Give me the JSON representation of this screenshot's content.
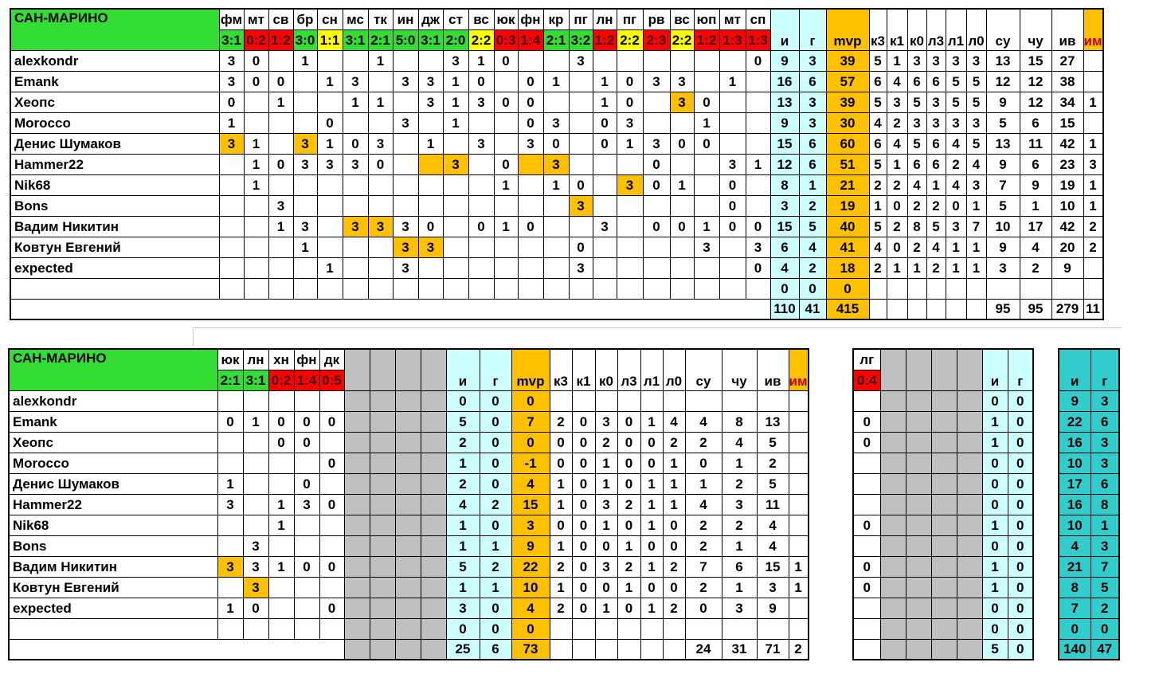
{
  "team_name": "САН-МАРИНО",
  "players": [
    "alexkondr",
    "Emank",
    "Хеопс",
    "Morocco",
    "Денис Шумаков",
    "Hammer22",
    "Nik68",
    "Bons",
    "Вадим Никитин",
    "Ковтун Евгений",
    "expected"
  ],
  "colors": {
    "win": "#33dd33",
    "draw": "#ffff00",
    "loss": "#ff0000",
    "stat_bg": "#ccffff",
    "mvp_bg": "#ffc000",
    "highlight": "#ffc000",
    "grey": "#bfbfbf",
    "total_bg": "#33cccc"
  },
  "table1": {
    "opponents": [
      {
        "code": "фм",
        "score": "3:1",
        "result": "win"
      },
      {
        "code": "мт",
        "score": "0:2",
        "result": "loss"
      },
      {
        "code": "св",
        "score": "1:2",
        "result": "loss"
      },
      {
        "code": "бр",
        "score": "3:0",
        "result": "win"
      },
      {
        "code": "сн",
        "score": "1:1",
        "result": "draw"
      },
      {
        "code": "мс",
        "score": "3:1",
        "result": "win"
      },
      {
        "code": "тк",
        "score": "2:1",
        "result": "win"
      },
      {
        "code": "ин",
        "score": "5:0",
        "result": "win"
      },
      {
        "code": "дж",
        "score": "3:1",
        "result": "win"
      },
      {
        "code": "ст",
        "score": "2:0",
        "result": "win"
      },
      {
        "code": "вс",
        "score": "2:2",
        "result": "draw"
      },
      {
        "code": "юк",
        "score": "0:3",
        "result": "loss"
      },
      {
        "code": "фн",
        "score": "1:4",
        "result": "loss"
      },
      {
        "code": "кр",
        "score": "2:1",
        "result": "win"
      },
      {
        "code": "пг",
        "score": "3:2",
        "result": "win"
      },
      {
        "code": "лн",
        "score": "1:2",
        "result": "loss"
      },
      {
        "code": "пг",
        "score": "2:2",
        "result": "draw"
      },
      {
        "code": "рв",
        "score": "2:3",
        "result": "loss"
      },
      {
        "code": "вс",
        "score": "2:2",
        "result": "draw"
      },
      {
        "code": "юп",
        "score": "1:2",
        "result": "loss"
      },
      {
        "code": "мт",
        "score": "1:3",
        "result": "loss"
      },
      {
        "code": "сп",
        "score": "1:3",
        "result": "loss"
      }
    ],
    "stat_headers": [
      "и",
      "г",
      "mvp",
      "к3",
      "к1",
      "к0",
      "л3",
      "л1",
      "л0",
      "су",
      "чу",
      "ив",
      "им"
    ],
    "match_values": [
      [
        "3",
        "0",
        "",
        "1",
        "",
        "",
        "1",
        "",
        "",
        "3",
        "1",
        "0",
        "",
        "",
        "3",
        "",
        "",
        "",
        "",
        "",
        "",
        "0"
      ],
      [
        "3",
        "0",
        "0",
        "",
        "1",
        "3",
        "",
        "3",
        "3",
        "1",
        "0",
        "",
        "0",
        "1",
        "",
        "1",
        "0",
        "3",
        "3",
        "",
        "1",
        ""
      ],
      [
        "0",
        "",
        "1",
        "",
        "",
        "1",
        "1",
        "",
        "3",
        "1",
        "3",
        "0",
        "0",
        "",
        "",
        "1",
        "0",
        "",
        "3",
        "0",
        "",
        ""
      ],
      [
        "1",
        "",
        "",
        "",
        "0",
        "",
        "",
        "3",
        "",
        "1",
        "",
        "",
        "0",
        "3",
        "",
        "0",
        "3",
        "",
        "",
        "1",
        "",
        ""
      ],
      [
        "3",
        "1",
        "",
        "3",
        "1",
        "0",
        "3",
        "",
        "1",
        "",
        "3",
        "",
        "3",
        "0",
        "",
        "0",
        "1",
        "3",
        "0",
        "0",
        "",
        ""
      ],
      [
        "",
        "1",
        "0",
        "3",
        "3",
        "3",
        "0",
        "",
        "",
        "3",
        "",
        "0",
        "",
        "3",
        "",
        "",
        "",
        "0",
        "",
        "",
        "3",
        "1"
      ],
      [
        "",
        "1",
        "",
        "",
        "",
        "",
        "",
        "",
        "",
        "",
        "",
        "1",
        "",
        "1",
        "0",
        "",
        "3",
        "0",
        "1",
        "",
        "0",
        ""
      ],
      [
        "",
        "",
        "3",
        "",
        "",
        "",
        "",
        "",
        "",
        "",
        "",
        "",
        "",
        "",
        "3",
        "",
        "",
        "",
        "",
        "",
        "0",
        ""
      ],
      [
        "",
        "",
        "1",
        "3",
        "",
        "3",
        "3",
        "3",
        "0",
        "",
        "0",
        "1",
        "0",
        "",
        "",
        "3",
        "",
        "0",
        "0",
        "1",
        "0",
        "0"
      ],
      [
        "",
        "",
        "",
        "1",
        "",
        "",
        "",
        "3",
        "3",
        "",
        "",
        "",
        "",
        "",
        "0",
        "",
        "",
        "",
        "",
        "3",
        "",
        "3"
      ],
      [
        "",
        "",
        "",
        "",
        "1",
        "",
        "",
        "3",
        "",
        "",
        "",
        "",
        "",
        "",
        "3",
        "",
        "",
        "",
        "",
        "",
        "",
        "0"
      ],
      [
        "",
        "",
        "",
        "",
        "",
        "",
        "",
        "",
        "",
        "",
        "",
        "",
        "",
        "",
        "",
        "",
        "",
        "",
        "",
        "",
        "",
        ""
      ]
    ],
    "highlights": [
      [
        4,
        0
      ],
      [
        4,
        3
      ],
      [
        5,
        8
      ],
      [
        5,
        12
      ],
      [
        5,
        9
      ],
      [
        5,
        13
      ],
      [
        6,
        16
      ],
      [
        7,
        14
      ],
      [
        8,
        5
      ],
      [
        8,
        6
      ],
      [
        9,
        7
      ],
      [
        9,
        8
      ],
      [
        2,
        18
      ]
    ],
    "stat_values": [
      [
        "9",
        "3",
        "39",
        "5",
        "1",
        "3",
        "3",
        "3",
        "3",
        "13",
        "15",
        "27",
        ""
      ],
      [
        "16",
        "6",
        "57",
        "6",
        "4",
        "6",
        "6",
        "5",
        "5",
        "12",
        "12",
        "38",
        ""
      ],
      [
        "13",
        "3",
        "39",
        "5",
        "3",
        "5",
        "3",
        "5",
        "5",
        "9",
        "12",
        "34",
        "1"
      ],
      [
        "9",
        "3",
        "30",
        "4",
        "2",
        "3",
        "3",
        "3",
        "3",
        "5",
        "6",
        "15",
        ""
      ],
      [
        "15",
        "6",
        "60",
        "6",
        "4",
        "5",
        "6",
        "4",
        "5",
        "13",
        "11",
        "42",
        "1"
      ],
      [
        "12",
        "6",
        "51",
        "5",
        "1",
        "6",
        "6",
        "2",
        "4",
        "9",
        "6",
        "23",
        "3"
      ],
      [
        "8",
        "1",
        "21",
        "2",
        "2",
        "4",
        "1",
        "4",
        "3",
        "7",
        "9",
        "19",
        "1"
      ],
      [
        "3",
        "2",
        "19",
        "1",
        "0",
        "2",
        "2",
        "0",
        "1",
        "5",
        "1",
        "10",
        "1"
      ],
      [
        "15",
        "5",
        "40",
        "5",
        "2",
        "8",
        "5",
        "3",
        "7",
        "10",
        "17",
        "42",
        "2"
      ],
      [
        "6",
        "4",
        "41",
        "4",
        "0",
        "2",
        "4",
        "1",
        "1",
        "9",
        "4",
        "20",
        "2"
      ],
      [
        "4",
        "2",
        "18",
        "2",
        "1",
        "1",
        "2",
        "1",
        "1",
        "3",
        "2",
        "9",
        ""
      ],
      [
        "0",
        "0",
        "0",
        "",
        "",
        "",
        "",
        "",
        "",
        "",
        "",
        "",
        ""
      ]
    ],
    "totals": [
      "110",
      "41",
      "415",
      "",
      "",
      "",
      "",
      "",
      "",
      "95",
      "95",
      "279",
      "11"
    ]
  },
  "table2": {
    "opponents": [
      {
        "code": "юк",
        "score": "2:1",
        "result": "win"
      },
      {
        "code": "лн",
        "score": "3:1",
        "result": "win"
      },
      {
        "code": "хн",
        "score": "0:2",
        "result": "loss"
      },
      {
        "code": "фн",
        "score": "1:4",
        "result": "loss"
      },
      {
        "code": "дк",
        "score": "0:5",
        "result": "loss"
      }
    ],
    "stat_headers": [
      "и",
      "г",
      "mvp",
      "к3",
      "к1",
      "к0",
      "л3",
      "л1",
      "л0",
      "су",
      "чу",
      "ив",
      "им"
    ],
    "match_values": [
      [
        "",
        "",
        "",
        "",
        ""
      ],
      [
        "0",
        "1",
        "0",
        "0",
        "0"
      ],
      [
        "",
        "",
        "0",
        "0",
        ""
      ],
      [
        "",
        "",
        "",
        "",
        "0"
      ],
      [
        "1",
        "",
        "",
        "0",
        ""
      ],
      [
        "3",
        "",
        "1",
        "3",
        "0"
      ],
      [
        "",
        "",
        "1",
        "",
        ""
      ],
      [
        "",
        "3",
        "",
        "",
        ""
      ],
      [
        "3",
        "3",
        "1",
        "0",
        "0"
      ],
      [
        "",
        "3",
        "",
        "",
        ""
      ],
      [
        "1",
        "0",
        "",
        "",
        "0"
      ],
      [
        "",
        "",
        "",
        "",
        ""
      ]
    ],
    "highlights": [
      [
        8,
        0
      ],
      [
        9,
        1
      ]
    ],
    "stat_values": [
      [
        "0",
        "0",
        "0",
        "",
        "",
        "",
        "",
        "",
        "",
        "",
        "",
        "",
        ""
      ],
      [
        "5",
        "0",
        "7",
        "2",
        "0",
        "3",
        "0",
        "1",
        "4",
        "4",
        "8",
        "13",
        ""
      ],
      [
        "2",
        "0",
        "0",
        "0",
        "0",
        "2",
        "0",
        "0",
        "2",
        "2",
        "4",
        "5",
        ""
      ],
      [
        "1",
        "0",
        "-1",
        "0",
        "0",
        "1",
        "0",
        "0",
        "1",
        "0",
        "1",
        "2",
        ""
      ],
      [
        "2",
        "0",
        "4",
        "1",
        "0",
        "1",
        "0",
        "1",
        "1",
        "1",
        "2",
        "5",
        ""
      ],
      [
        "4",
        "2",
        "15",
        "1",
        "0",
        "3",
        "2",
        "1",
        "1",
        "4",
        "3",
        "11",
        ""
      ],
      [
        "1",
        "0",
        "3",
        "0",
        "0",
        "1",
        "0",
        "1",
        "0",
        "2",
        "2",
        "4",
        ""
      ],
      [
        "1",
        "1",
        "9",
        "1",
        "0",
        "0",
        "1",
        "0",
        "0",
        "2",
        "1",
        "4",
        ""
      ],
      [
        "5",
        "2",
        "22",
        "2",
        "0",
        "3",
        "2",
        "1",
        "2",
        "7",
        "6",
        "15",
        "1"
      ],
      [
        "1",
        "1",
        "10",
        "1",
        "0",
        "0",
        "1",
        "0",
        "0",
        "2",
        "1",
        "3",
        "1"
      ],
      [
        "3",
        "0",
        "4",
        "2",
        "0",
        "1",
        "0",
        "1",
        "2",
        "0",
        "3",
        "9",
        ""
      ],
      [
        "0",
        "0",
        "0",
        "",
        "",
        "",
        "",
        "",
        "",
        "",
        "",
        "",
        ""
      ]
    ],
    "totals": [
      "25",
      "6",
      "73",
      "",
      "",
      "",
      "",
      "",
      "",
      "24",
      "31",
      "71",
      "2"
    ]
  },
  "table3": {
    "opponent": {
      "code": "лг",
      "score": "0:4",
      "result": "loss"
    },
    "stat_headers": [
      "и",
      "г"
    ],
    "match_values": [
      "",
      "0",
      "0",
      "",
      "",
      "",
      "0",
      "",
      "0",
      "0",
      "",
      ""
    ],
    "stat_values": [
      [
        "0",
        "0"
      ],
      [
        "1",
        "0"
      ],
      [
        "1",
        "0"
      ],
      [
        "0",
        "0"
      ],
      [
        "0",
        "0"
      ],
      [
        "0",
        "0"
      ],
      [
        "1",
        "0"
      ],
      [
        "0",
        "0"
      ],
      [
        "1",
        "0"
      ],
      [
        "1",
        "0"
      ],
      [
        "0",
        "0"
      ],
      [
        "0",
        "0"
      ]
    ],
    "totals": [
      "5",
      "0"
    ]
  },
  "table4": {
    "stat_headers": [
      "и",
      "г"
    ],
    "stat_values": [
      [
        "9",
        "3"
      ],
      [
        "22",
        "6"
      ],
      [
        "16",
        "3"
      ],
      [
        "10",
        "3"
      ],
      [
        "17",
        "6"
      ],
      [
        "16",
        "8"
      ],
      [
        "10",
        "1"
      ],
      [
        "4",
        "3"
      ],
      [
        "21",
        "7"
      ],
      [
        "8",
        "5"
      ],
      [
        "7",
        "2"
      ],
      [
        "0",
        "0"
      ]
    ],
    "totals": [
      "140",
      "47"
    ]
  }
}
